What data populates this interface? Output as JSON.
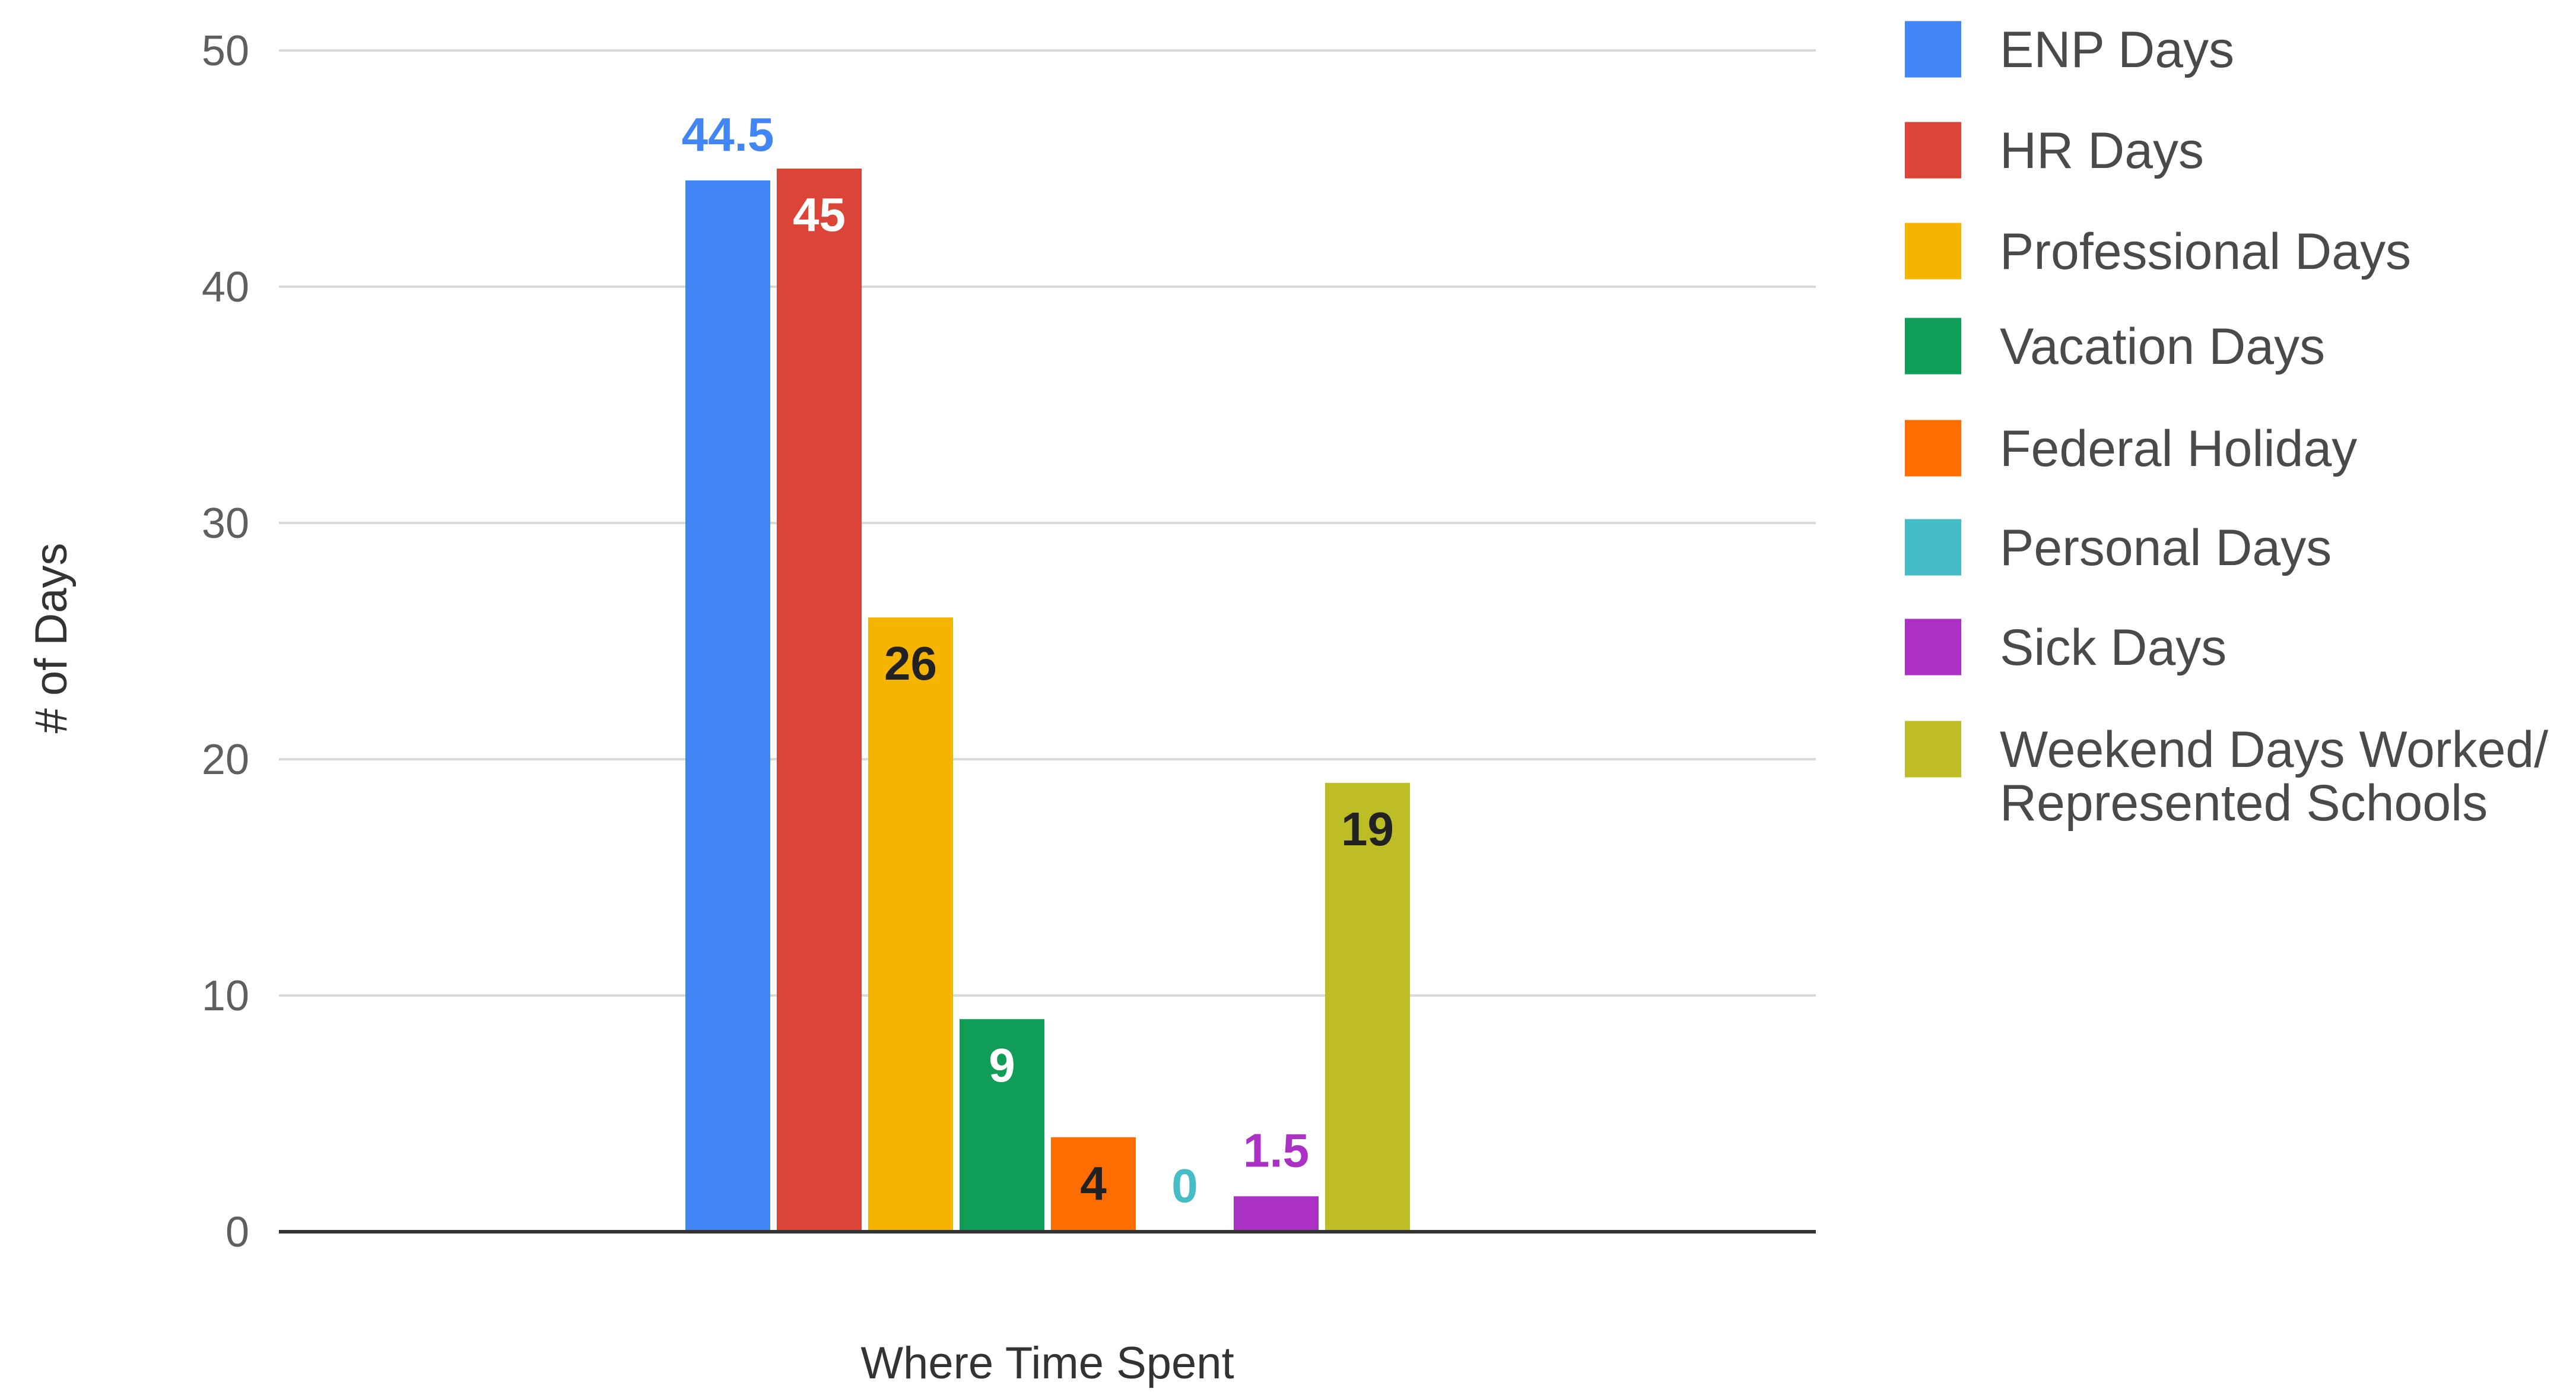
{
  "chart_data": {
    "type": "bar",
    "title": "",
    "xlabel": "Where Time Spent",
    "ylabel": "# of Days",
    "ylim": [
      0,
      50
    ],
    "yticks": [
      0,
      10,
      20,
      30,
      40,
      50
    ],
    "grid": true,
    "legend_position": "right",
    "categories": [
      ""
    ],
    "series": [
      {
        "name": "ENP Days",
        "values": [
          44.5
        ],
        "label": "44.5",
        "color": "#4285f4",
        "label_color": "#4285f4",
        "label_position": "above"
      },
      {
        "name": "HR Days",
        "values": [
          45
        ],
        "label": "45",
        "color": "#db4437",
        "label_color": "#ffffff",
        "label_position": "inside"
      },
      {
        "name": "Professional Days",
        "values": [
          26
        ],
        "label": "26",
        "color": "#f4b400",
        "label_color": "#222222",
        "label_position": "inside"
      },
      {
        "name": "Vacation Days",
        "values": [
          9
        ],
        "label": "9",
        "color": "#0f9d58",
        "label_color": "#ffffff",
        "label_position": "inside"
      },
      {
        "name": "Federal Holiday",
        "values": [
          4
        ],
        "label": "4",
        "color": "#ff6d01",
        "label_color": "#222222",
        "label_position": "inside"
      },
      {
        "name": "Personal Days",
        "values": [
          0
        ],
        "label": "0",
        "color": "#46bdc6",
        "label_color": "#46bdc6",
        "label_position": "above"
      },
      {
        "name": "Sick Days",
        "values": [
          1.5
        ],
        "label": "1.5",
        "color": "#ab30c4",
        "label_color": "#ab30c4",
        "label_position": "above"
      },
      {
        "name": "Weekend Days Worked/ Represented Schools",
        "legend_lines": [
          "Weekend Days Worked/",
          "Represented Schools"
        ],
        "values": [
          19
        ],
        "label": "19",
        "color": "#bdbd26",
        "label_color": "#222222",
        "label_position": "inside"
      }
    ]
  }
}
